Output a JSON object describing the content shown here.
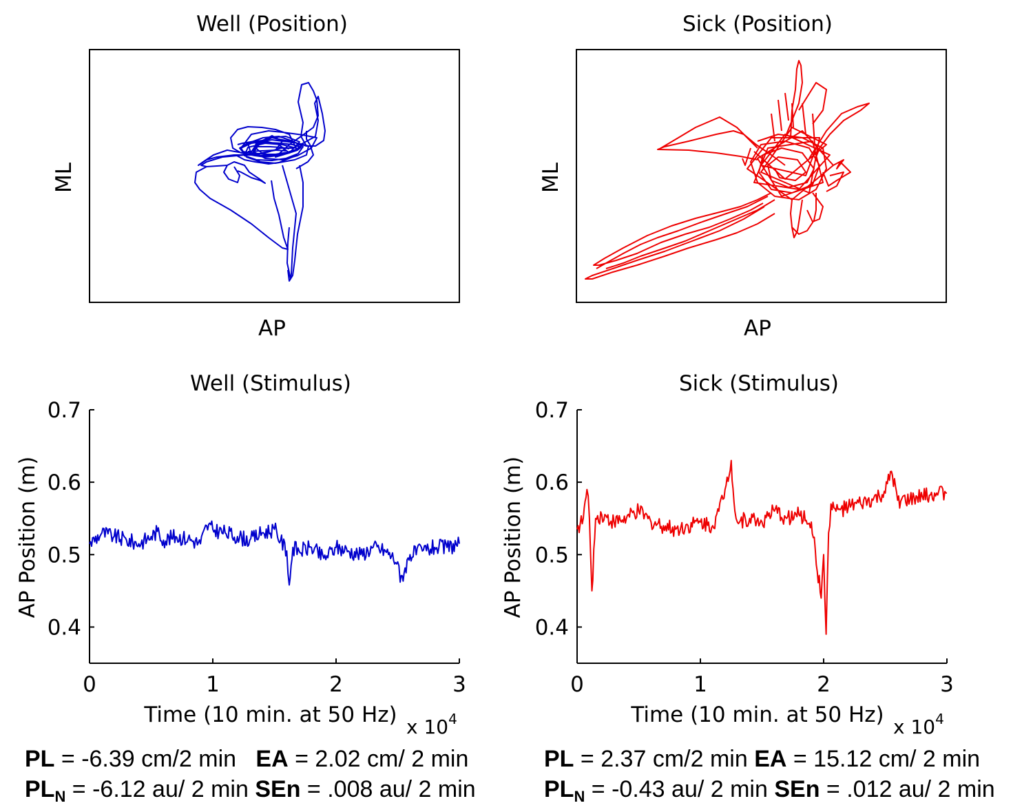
{
  "chart_data": [
    {
      "type": "line",
      "panel": "top-left",
      "title": "Well (Position)",
      "xlabel": "AP",
      "ylabel": "ML",
      "ticks": "none",
      "color": "#0000cc",
      "note": "2D trajectory; compact cluster near center with loops extending up-right and down"
    },
    {
      "type": "line",
      "panel": "top-right",
      "title": "Sick (Position)",
      "xlabel": "AP",
      "ylabel": "ML",
      "ticks": "none",
      "color": "#ee0000",
      "note": "2D trajectory; dense cluster center-right with long excursions to lower-left and up"
    },
    {
      "type": "line",
      "panel": "bottom-left",
      "title": "Well (Stimulus)",
      "xlabel": "Time (10 min. at 50 Hz)",
      "ylabel": "AP Position (m)",
      "xlim": [
        0,
        3
      ],
      "ylim": [
        0.35,
        0.7
      ],
      "xticks": [
        "0",
        "1",
        "2",
        "3"
      ],
      "yticks": [
        "0.4",
        "0.5",
        "0.6",
        "0.7"
      ],
      "ytick_values": [
        0.4,
        0.5,
        0.6,
        0.7
      ],
      "xticks_values": [
        0,
        1,
        2,
        3
      ],
      "x_multiplier": "x 10",
      "x_multiplier_exp": "4",
      "color": "#0000cc",
      "series": [
        {
          "name": "AP position",
          "x": [
            0,
            0.1,
            0.2,
            0.3,
            0.4,
            0.5,
            0.55,
            0.6,
            0.7,
            0.8,
            0.9,
            0.95,
            1.0,
            1.1,
            1.2,
            1.3,
            1.4,
            1.5,
            1.55,
            1.6,
            1.62,
            1.65,
            1.7,
            1.8,
            1.9,
            2.0,
            2.1,
            2.2,
            2.3,
            2.4,
            2.5,
            2.52,
            2.6,
            2.7,
            2.8,
            2.9,
            3.0
          ],
          "values": [
            0.515,
            0.53,
            0.525,
            0.52,
            0.515,
            0.525,
            0.532,
            0.52,
            0.525,
            0.522,
            0.515,
            0.54,
            0.535,
            0.53,
            0.525,
            0.52,
            0.53,
            0.535,
            0.52,
            0.505,
            0.458,
            0.51,
            0.505,
            0.51,
            0.495,
            0.51,
            0.505,
            0.5,
            0.51,
            0.505,
            0.49,
            0.462,
            0.5,
            0.505,
            0.51,
            0.51,
            0.515
          ]
        }
      ]
    },
    {
      "type": "line",
      "panel": "bottom-right",
      "title": "Sick (Stimulus)",
      "xlabel": "Time (10 min. at 50 Hz)",
      "ylabel": "AP Position (m)",
      "xlim": [
        0,
        3
      ],
      "ylim": [
        0.35,
        0.7
      ],
      "xticks": [
        "0",
        "1",
        "2",
        "3"
      ],
      "yticks": [
        "0.4",
        "0.5",
        "0.6",
        "0.7"
      ],
      "ytick_values": [
        0.4,
        0.5,
        0.6,
        0.7
      ],
      "xticks_values": [
        0,
        1,
        2,
        3
      ],
      "x_multiplier": "x 10",
      "x_multiplier_exp": "4",
      "color": "#ee0000",
      "series": [
        {
          "name": "AP position",
          "x": [
            0,
            0.05,
            0.08,
            0.1,
            0.12,
            0.15,
            0.2,
            0.3,
            0.4,
            0.5,
            0.6,
            0.7,
            0.8,
            0.9,
            1.0,
            1.1,
            1.15,
            1.2,
            1.25,
            1.28,
            1.3,
            1.4,
            1.5,
            1.6,
            1.7,
            1.8,
            1.9,
            1.98,
            2.0,
            2.02,
            2.04,
            2.06,
            2.1,
            2.2,
            2.3,
            2.4,
            2.5,
            2.55,
            2.6,
            2.7,
            2.8,
            2.9,
            3.0
          ],
          "values": [
            0.535,
            0.55,
            0.59,
            0.55,
            0.45,
            0.55,
            0.555,
            0.545,
            0.55,
            0.56,
            0.545,
            0.54,
            0.535,
            0.54,
            0.545,
            0.54,
            0.56,
            0.59,
            0.63,
            0.56,
            0.545,
            0.55,
            0.545,
            0.56,
            0.55,
            0.555,
            0.545,
            0.44,
            0.5,
            0.39,
            0.53,
            0.57,
            0.56,
            0.565,
            0.57,
            0.575,
            0.585,
            0.615,
            0.575,
            0.575,
            0.58,
            0.585,
            0.585
          ]
        }
      ]
    }
  ],
  "stats": {
    "well": {
      "line1": {
        "pl_label": "PL",
        "pl_value": " = -6.39 cm/2 min",
        "ea_label": "EA",
        "ea_value": " = 2.02 cm/ 2 min"
      },
      "line2": {
        "pln_label": "PL",
        "pln_sub": "N",
        "pln_value": " = -6.12 au/ 2 min ",
        "sen_label": "SEn",
        "sen_value": " = .008 au/ 2 min"
      }
    },
    "sick": {
      "line1": {
        "pl_label": "PL",
        "pl_value": " = 2.37 cm/2 min ",
        "ea_label": "EA",
        "ea_value": " = 15.12 cm/ 2 min"
      },
      "line2": {
        "pln_label": "PL",
        "pln_sub": "N",
        "pln_value": " = -0.43 au/ 2 min ",
        "sen_label": "SEn",
        "sen_value": " = .012 au/ 2 min"
      }
    }
  }
}
